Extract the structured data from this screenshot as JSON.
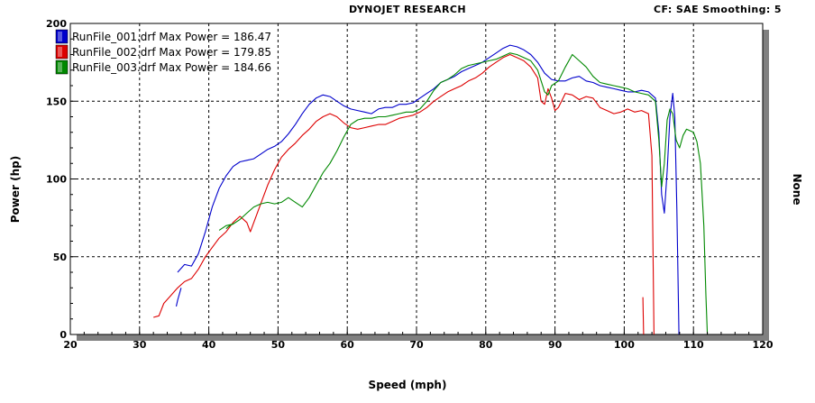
{
  "header": {
    "title": "DYNOJET RESEARCH",
    "info": "CF: SAE  Smoothing: 5"
  },
  "chart_data": {
    "type": "line",
    "title": "DYNOJET RESEARCH",
    "xlabel": "Speed (mph)",
    "ylabel": "Power (hp)",
    "y2label": "None",
    "xlim": [
      20,
      120
    ],
    "ylim": [
      0,
      200
    ],
    "xticks": [
      20,
      30,
      40,
      50,
      60,
      70,
      80,
      90,
      100,
      110,
      120
    ],
    "yticks": [
      0,
      50,
      100,
      150,
      200
    ],
    "grid": true,
    "legend_position": "top-left",
    "series": [
      {
        "name": "RunFile_001.drf Max Power = 186.47",
        "color": "#0000cc",
        "points": [
          [
            35.5,
            40
          ],
          [
            36.5,
            45
          ],
          [
            37.5,
            44
          ],
          [
            38.5,
            52
          ],
          [
            39.5,
            66
          ],
          [
            40.5,
            82
          ],
          [
            41.5,
            94
          ],
          [
            42.5,
            102
          ],
          [
            43.5,
            108
          ],
          [
            44.5,
            111
          ],
          [
            45.5,
            112
          ],
          [
            46.5,
            113
          ],
          [
            47.5,
            116
          ],
          [
            48.5,
            119
          ],
          [
            49.5,
            121
          ],
          [
            50.5,
            124
          ],
          [
            51.5,
            129
          ],
          [
            52.5,
            135
          ],
          [
            53.5,
            142
          ],
          [
            54.5,
            148
          ],
          [
            55.5,
            152
          ],
          [
            56.5,
            154
          ],
          [
            57.5,
            153
          ],
          [
            58.5,
            150
          ],
          [
            59.5,
            147
          ],
          [
            60.5,
            145
          ],
          [
            61.5,
            144
          ],
          [
            62.5,
            143
          ],
          [
            63.5,
            142
          ],
          [
            64.5,
            145
          ],
          [
            65.5,
            146
          ],
          [
            66.5,
            146
          ],
          [
            67.5,
            148
          ],
          [
            68.5,
            148
          ],
          [
            69.5,
            149
          ],
          [
            70.5,
            152
          ],
          [
            71.5,
            155
          ],
          [
            72.5,
            158
          ],
          [
            73.5,
            162
          ],
          [
            74.5,
            164
          ],
          [
            75.5,
            166
          ],
          [
            76.5,
            169
          ],
          [
            77.5,
            171
          ],
          [
            78.5,
            173
          ],
          [
            79.5,
            175
          ],
          [
            80.5,
            178
          ],
          [
            81.5,
            181
          ],
          [
            82.5,
            184
          ],
          [
            83.5,
            186
          ],
          [
            84.5,
            185
          ],
          [
            85.5,
            183
          ],
          [
            86.5,
            180
          ],
          [
            87.5,
            175
          ],
          [
            88.5,
            168
          ],
          [
            89.5,
            164
          ],
          [
            90.5,
            163
          ],
          [
            91.5,
            163
          ],
          [
            92.5,
            165
          ],
          [
            93.5,
            166
          ],
          [
            94.5,
            163
          ],
          [
            95.5,
            162
          ],
          [
            96.5,
            160
          ],
          [
            97.5,
            159
          ],
          [
            98.5,
            158
          ],
          [
            99.5,
            157
          ],
          [
            100.5,
            156
          ],
          [
            101.5,
            156
          ],
          [
            102.5,
            157
          ],
          [
            103.5,
            156
          ],
          [
            104.5,
            152
          ],
          [
            105.0,
            130
          ],
          [
            105.4,
            90
          ],
          [
            105.8,
            78
          ],
          [
            106.2,
            105
          ],
          [
            106.6,
            140
          ],
          [
            107.0,
            155
          ],
          [
            107.3,
            140
          ],
          [
            107.6,
            80
          ],
          [
            107.9,
            0
          ]
        ]
      },
      {
        "name": "RunFile_002.drf Max Power = 179.85",
        "color": "#dd0000",
        "points": [
          [
            32.0,
            11
          ],
          [
            32.8,
            12
          ],
          [
            33.5,
            20
          ],
          [
            34.5,
            25
          ],
          [
            35.5,
            30
          ],
          [
            36.5,
            34
          ],
          [
            37.5,
            36
          ],
          [
            38.5,
            42
          ],
          [
            39.5,
            50
          ],
          [
            40.5,
            56
          ],
          [
            41.5,
            62
          ],
          [
            42.5,
            66
          ],
          [
            43.5,
            72
          ],
          [
            44.5,
            76
          ],
          [
            45.5,
            72
          ],
          [
            46.0,
            66
          ],
          [
            46.5,
            72
          ],
          [
            47.5,
            84
          ],
          [
            48.5,
            96
          ],
          [
            49.5,
            106
          ],
          [
            50.5,
            114
          ],
          [
            51.5,
            119
          ],
          [
            52.5,
            123
          ],
          [
            53.5,
            128
          ],
          [
            54.5,
            132
          ],
          [
            55.5,
            137
          ],
          [
            56.5,
            140
          ],
          [
            57.5,
            142
          ],
          [
            58.5,
            140
          ],
          [
            59.5,
            136
          ],
          [
            60.5,
            133
          ],
          [
            61.5,
            132
          ],
          [
            62.5,
            133
          ],
          [
            63.5,
            134
          ],
          [
            64.5,
            135
          ],
          [
            65.5,
            135
          ],
          [
            66.5,
            137
          ],
          [
            67.5,
            139
          ],
          [
            68.5,
            140
          ],
          [
            69.5,
            141
          ],
          [
            70.5,
            143
          ],
          [
            71.5,
            146
          ],
          [
            72.5,
            150
          ],
          [
            73.5,
            153
          ],
          [
            74.5,
            156
          ],
          [
            75.5,
            158
          ],
          [
            76.5,
            160
          ],
          [
            77.5,
            163
          ],
          [
            78.5,
            165
          ],
          [
            79.5,
            168
          ],
          [
            80.5,
            172
          ],
          [
            81.5,
            175
          ],
          [
            82.5,
            178
          ],
          [
            83.5,
            180
          ],
          [
            84.5,
            178
          ],
          [
            85.5,
            176
          ],
          [
            86.5,
            172
          ],
          [
            87.5,
            165
          ],
          [
            88.0,
            150
          ],
          [
            88.5,
            148
          ],
          [
            89.0,
            158
          ],
          [
            89.5,
            152
          ],
          [
            90.0,
            144
          ],
          [
            90.5,
            146
          ],
          [
            91.5,
            155
          ],
          [
            92.5,
            154
          ],
          [
            93.5,
            151
          ],
          [
            94.5,
            153
          ],
          [
            95.5,
            152
          ],
          [
            96.5,
            146
          ],
          [
            97.5,
            144
          ],
          [
            98.5,
            142
          ],
          [
            99.5,
            143
          ],
          [
            100.5,
            145
          ],
          [
            101.5,
            143
          ],
          [
            102.5,
            144
          ],
          [
            103.5,
            142
          ],
          [
            104.0,
            115
          ],
          [
            104.3,
            0
          ]
        ]
      },
      {
        "name": "RunFile_003.drf Max Power = 184.66",
        "color": "#008800",
        "points": [
          [
            41.5,
            67
          ],
          [
            42.5,
            70
          ],
          [
            43.5,
            71
          ],
          [
            44.5,
            74
          ],
          [
            45.5,
            78
          ],
          [
            46.5,
            82
          ],
          [
            47.5,
            84
          ],
          [
            48.5,
            85
          ],
          [
            49.5,
            84
          ],
          [
            50.5,
            85
          ],
          [
            51.5,
            88
          ],
          [
            52.5,
            85
          ],
          [
            53.5,
            82
          ],
          [
            54.5,
            88
          ],
          [
            55.5,
            96
          ],
          [
            56.5,
            104
          ],
          [
            57.5,
            110
          ],
          [
            58.5,
            118
          ],
          [
            59.5,
            127
          ],
          [
            60.5,
            135
          ],
          [
            61.5,
            138
          ],
          [
            62.5,
            139
          ],
          [
            63.5,
            139
          ],
          [
            64.5,
            140
          ],
          [
            65.5,
            140
          ],
          [
            66.5,
            141
          ],
          [
            67.5,
            142
          ],
          [
            68.5,
            143
          ],
          [
            69.5,
            143
          ],
          [
            70.5,
            145
          ],
          [
            71.5,
            150
          ],
          [
            72.5,
            157
          ],
          [
            73.5,
            162
          ],
          [
            74.5,
            164
          ],
          [
            75.5,
            167
          ],
          [
            76.5,
            171
          ],
          [
            77.5,
            173
          ],
          [
            78.5,
            174
          ],
          [
            79.5,
            175
          ],
          [
            80.5,
            176
          ],
          [
            81.5,
            177
          ],
          [
            82.5,
            179
          ],
          [
            83.5,
            181
          ],
          [
            84.5,
            180
          ],
          [
            85.5,
            178
          ],
          [
            86.5,
            176
          ],
          [
            87.5,
            170
          ],
          [
            88.5,
            156
          ],
          [
            89.0,
            154
          ],
          [
            89.5,
            160
          ],
          [
            90.5,
            163
          ],
          [
            91.5,
            172
          ],
          [
            92.5,
            180
          ],
          [
            93.5,
            176
          ],
          [
            94.5,
            172
          ],
          [
            95.5,
            166
          ],
          [
            96.5,
            162
          ],
          [
            97.5,
            161
          ],
          [
            98.5,
            160
          ],
          [
            99.5,
            159
          ],
          [
            100.5,
            158
          ],
          [
            101.5,
            156
          ],
          [
            102.5,
            155
          ],
          [
            103.5,
            154
          ],
          [
            104.5,
            150
          ],
          [
            105.0,
            125
          ],
          [
            105.4,
            95
          ],
          [
            105.8,
            110
          ],
          [
            106.2,
            138
          ],
          [
            106.6,
            145
          ],
          [
            107.0,
            142
          ],
          [
            107.5,
            125
          ],
          [
            108.0,
            120
          ],
          [
            108.5,
            128
          ],
          [
            109.0,
            132
          ],
          [
            109.5,
            131
          ],
          [
            110.0,
            130
          ],
          [
            110.5,
            124
          ],
          [
            111.0,
            110
          ],
          [
            111.5,
            70
          ],
          [
            111.8,
            25
          ],
          [
            112.0,
            0
          ]
        ]
      }
    ],
    "fragments": [
      {
        "color": "#008800",
        "points": [
          [
            42.5,
            68
          ],
          [
            43.0,
            70
          ],
          [
            43.5,
            71
          ]
        ]
      },
      {
        "color": "#0000cc",
        "points": [
          [
            36.0,
            30
          ],
          [
            35.5,
            22
          ],
          [
            35.3,
            18
          ]
        ]
      },
      {
        "color": "#dd0000",
        "points": [
          [
            102.7,
            24
          ],
          [
            102.8,
            0
          ]
        ]
      }
    ]
  }
}
